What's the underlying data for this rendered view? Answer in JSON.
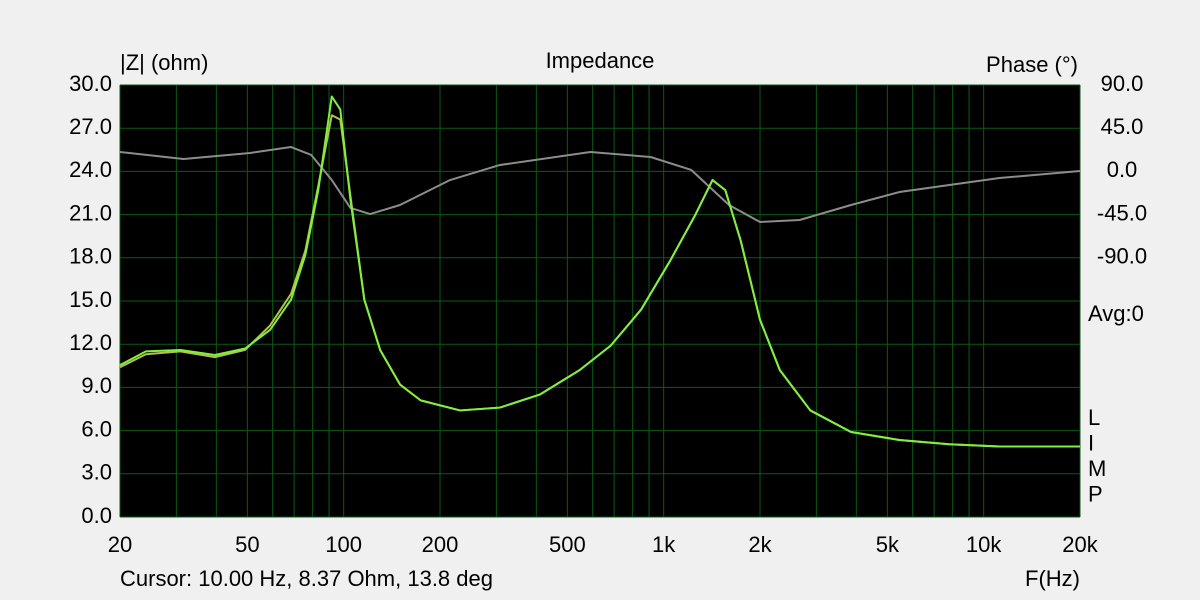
{
  "chart_data": {
    "type": "line",
    "title": "Impedance",
    "y_label": "|Z| (ohm)",
    "y2_label": "Phase (°)",
    "x_label": "F(Hz)",
    "cursor_text": "Cursor: 10.00 Hz, 8.37 Ohm, 13.8 deg",
    "avg_text": "Avg:0",
    "side_letters": [
      "L",
      "I",
      "M",
      "P"
    ],
    "x_log": true,
    "grid": true,
    "background": "#000000",
    "grid_color": "#0b5a14",
    "xlim": [
      20,
      20000
    ],
    "xticks": [
      20,
      50,
      100,
      200,
      500,
      {
        "value": 1000,
        "label": "1k"
      },
      {
        "value": 2000,
        "label": "2k"
      },
      {
        "value": 5000,
        "label": "5k"
      },
      {
        "value": 10000,
        "label": "10k"
      },
      {
        "value": 20000,
        "label": "20k"
      }
    ],
    "minor_xticks": [
      30,
      40,
      60,
      70,
      80,
      90,
      300,
      400,
      600,
      700,
      800,
      900,
      3000,
      4000,
      6000,
      7000,
      8000,
      9000
    ],
    "ylim": [
      0,
      30
    ],
    "yticks": [
      {
        "value": 0,
        "label": "0.0"
      },
      {
        "value": 3,
        "label": "3.0"
      },
      {
        "value": 6,
        "label": "6.0"
      },
      {
        "value": 9,
        "label": "9.0"
      },
      {
        "value": 12,
        "label": "12.0"
      },
      {
        "value": 15,
        "label": "15.0"
      },
      {
        "value": 18,
        "label": "18.0"
      },
      {
        "value": 21,
        "label": "21.0"
      },
      {
        "value": 24,
        "label": "24.0"
      },
      {
        "value": 27,
        "label": "27.0"
      },
      {
        "value": 30,
        "label": "30.0"
      }
    ],
    "y2lim": [
      -360,
      90
    ],
    "y2ticks": [
      {
        "value": 90,
        "label": "90.0"
      },
      {
        "value": 45,
        "label": "45.0"
      },
      {
        "value": 0,
        "label": "0.0"
      },
      {
        "value": -45,
        "label": "-45.0"
      },
      {
        "value": -90,
        "label": "-90.0"
      }
    ],
    "series": [
      {
        "color": "#b4c048",
        "x": [
          20,
          24.1,
          30.9,
          39.6,
          49.2,
          58.9,
          68.5,
          75.9,
          83.3,
          91.8,
          97.6,
          105,
          116,
          130,
          150,
          174,
          231,
          308,
          410,
          546,
          683,
          850,
          1048,
          1257,
          1421,
          1558,
          1740,
          2000,
          2307,
          2873,
          3850,
          5450,
          7800,
          11200,
          20000
        ],
        "values": [
          10.4,
          11.3,
          11.5,
          11.1,
          11.6,
          13.3,
          15.5,
          18.5,
          23.0,
          27.9,
          27.6,
          22.3,
          15.1,
          11.6,
          9.2,
          8.1,
          7.4,
          7.6,
          8.5,
          10.2,
          11.9,
          14.4,
          17.8,
          21.0,
          23.4,
          22.7,
          19.2,
          13.7,
          10.2,
          7.4,
          5.9,
          5.35,
          5.05,
          4.9,
          4.9
        ]
      },
      {
        "color": "#80f040",
        "x": [
          20,
          24.1,
          30.9,
          39.6,
          49.2,
          58.9,
          68.5,
          75.9,
          83.3,
          91.8,
          97.6,
          105,
          116,
          130,
          150,
          174,
          231,
          308,
          410,
          546,
          683,
          850,
          1048,
          1257,
          1421,
          1558,
          1740,
          2000,
          2307,
          2873,
          3850,
          5450,
          7800,
          11200,
          20000
        ],
        "values": [
          10.55,
          11.5,
          11.6,
          11.25,
          11.7,
          13.0,
          15.1,
          18.2,
          22.7,
          29.2,
          28.3,
          22.0,
          15.1,
          11.6,
          9.2,
          8.1,
          7.4,
          7.6,
          8.5,
          10.2,
          11.9,
          14.4,
          17.8,
          21.0,
          23.4,
          22.7,
          19.2,
          13.7,
          10.2,
          7.4,
          5.9,
          5.35,
          5.05,
          4.9,
          4.9
        ]
      },
      {
        "color": "#8c8c8c",
        "axis": "y2",
        "x": [
          20,
          31.6,
          51,
          68.5,
          79.2,
          91.8,
          105,
          121,
          150,
          215,
          308,
          590,
          910,
          1220,
          1600,
          2000,
          2660,
          3850,
          5450,
          11200,
          20000
        ],
        "values": [
          20.2,
          12.9,
          19.2,
          25.4,
          17.1,
          -9,
          -38.1,
          -44.4,
          -35,
          -9,
          6.7,
          20.2,
          15,
          1.5,
          -35,
          -52.7,
          -50.6,
          -35,
          -21.5,
          -6.9,
          0.4
        ]
      }
    ]
  }
}
